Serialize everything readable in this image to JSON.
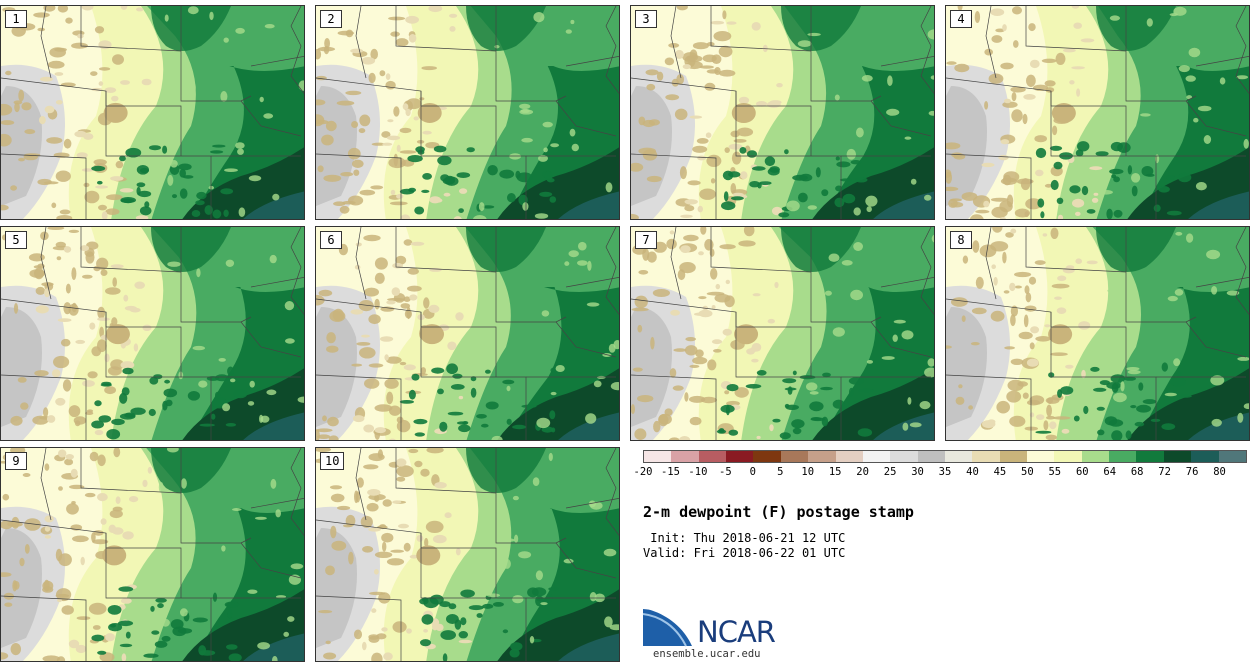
{
  "panels": [
    {
      "label": "1"
    },
    {
      "label": "2"
    },
    {
      "label": "3"
    },
    {
      "label": "4"
    },
    {
      "label": "5"
    },
    {
      "label": "6"
    },
    {
      "label": "7"
    },
    {
      "label": "8"
    },
    {
      "label": "9"
    },
    {
      "label": "10"
    }
  ],
  "colorbar": {
    "colors": [
      "#f6e6e6",
      "#d9a2a6",
      "#b85d62",
      "#8a1a22",
      "#7e3710",
      "#a8785a",
      "#c6a08a",
      "#e4cfc2",
      "#f3f3f3",
      "#dcdcdc",
      "#bfbfbf",
      "#e8e8de",
      "#e8dcb4",
      "#c9b47b",
      "#fcfbd7",
      "#f2f7b5",
      "#a8dc8c",
      "#49ab62",
      "#117a3c",
      "#0d4a2a",
      "#1c5d58",
      "#50777a"
    ],
    "tick_labels": [
      "-20",
      "-15",
      "-10",
      "-5",
      "0",
      "5",
      "10",
      "15",
      "20",
      "25",
      "30",
      "35",
      "40",
      "45",
      "50",
      "55",
      "60",
      "64",
      "68",
      "72",
      "76",
      "80"
    ]
  },
  "title": "2-m dewpoint (F) postage stamp",
  "init_line": " Init: Thu 2018-06-21 12 UTC",
  "valid_line": "Valid: Fri 2018-06-22 01 UTC",
  "logo": {
    "text": "NCAR",
    "site": "ensemble.ucar.edu"
  }
}
